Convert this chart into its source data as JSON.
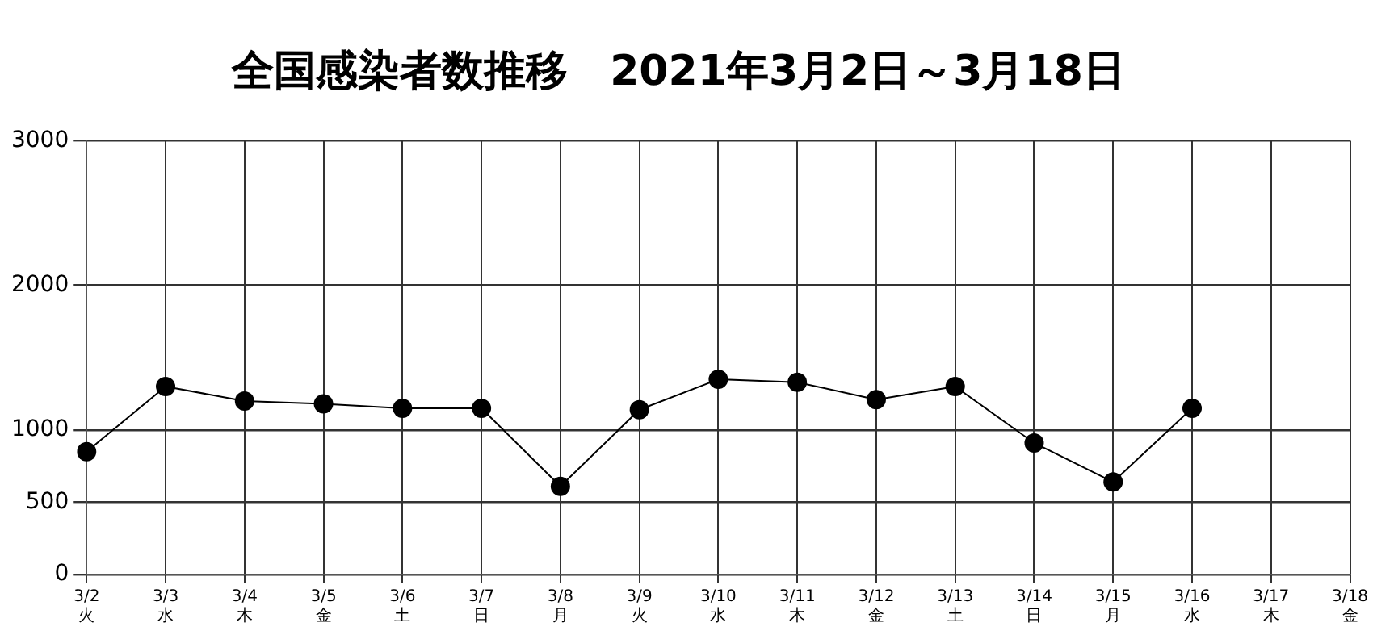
{
  "chart_data": {
    "type": "line",
    "title": "全国感染者数推移　2021年3月2日～3月18日",
    "categories": [
      "3/2\n火",
      "3/3\n水",
      "3/4\n木",
      "3/5\n金",
      "3/6\n土",
      "3/7\n日",
      "3/8\n月",
      "3/9\n火",
      "3/10\n水",
      "3/11\n木",
      "3/12\n金",
      "3/13\n土",
      "3/14\n日",
      "3/15\n月",
      "3/16\n水",
      "3/17\n木",
      "3/18\n金"
    ],
    "series": [
      {
        "color": "#000000",
        "values": [
          850,
          1300,
          1200,
          1180,
          1150,
          1150,
          610,
          1140,
          1350,
          1330,
          1210,
          1300,
          910,
          640,
          1150,
          null,
          null
        ]
      }
    ],
    "ylim": [
      0,
      3000
    ],
    "yticks": [
      0,
      500,
      1000,
      2000,
      3000
    ],
    "grid": true,
    "legend": false,
    "marker": "circle",
    "line_style": "solid"
  }
}
